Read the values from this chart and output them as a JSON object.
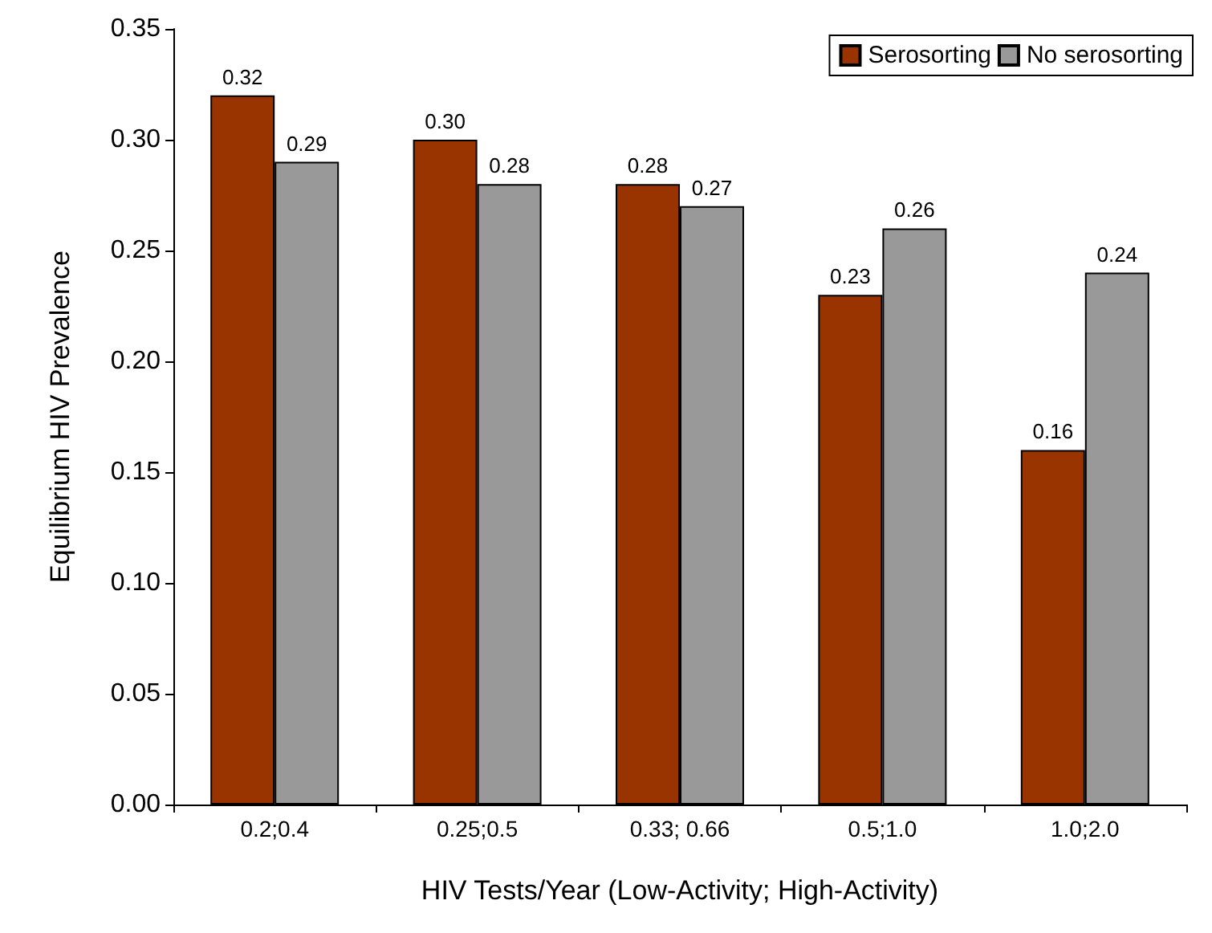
{
  "chart_data": {
    "type": "bar",
    "xlabel": "HIV Tests/Year (Low-Activity; High-Activity)",
    "ylabel": "Equilibrium HIV Prevalence",
    "categories": [
      "0.2;0.4",
      "0.25;0.5",
      "0.33; 0.66",
      "0.5;1.0",
      "1.0;2.0"
    ],
    "series": [
      {
        "name": "Serosorting",
        "color": "#993300",
        "values": [
          0.32,
          0.3,
          0.28,
          0.23,
          0.16
        ],
        "value_labels": [
          "0.32",
          "0.30",
          "0.28",
          "0.23",
          "0.16"
        ]
      },
      {
        "name": "No serosorting",
        "color": "#999999",
        "values": [
          0.29,
          0.28,
          0.27,
          0.26,
          0.24
        ],
        "value_labels": [
          "0.29",
          "0.28",
          "0.27",
          "0.26",
          "0.24"
        ]
      }
    ],
    "ylim": [
      0,
      0.35
    ],
    "yticks": [
      {
        "value": 0,
        "label": "0.00"
      },
      {
        "value": 0.05,
        "label": "0.05"
      },
      {
        "value": 0.1,
        "label": "0.10"
      },
      {
        "value": 0.15,
        "label": "0.15"
      },
      {
        "value": 0.2,
        "label": "0.20"
      },
      {
        "value": 0.25,
        "label": "0.25"
      },
      {
        "value": 0.3,
        "label": "0.30"
      },
      {
        "value": 0.35,
        "label": "0.35"
      }
    ],
    "grid": false,
    "legend": "top right"
  }
}
